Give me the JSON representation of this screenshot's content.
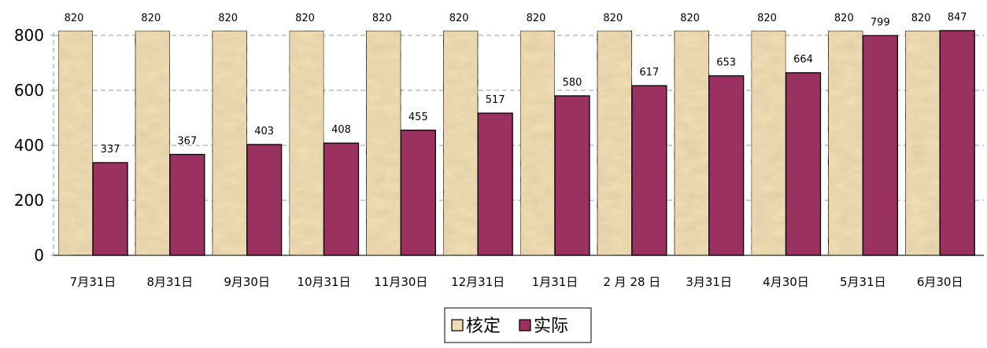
{
  "chart_data": {
    "type": "bar",
    "categories": [
      "7月31日",
      "8月31日",
      "9月30日",
      "10月31日",
      "11月30日",
      "12月31日",
      "1月31日",
      "2 月 28 日",
      "3月31日",
      "4月30日",
      "5月31日",
      "6月30日"
    ],
    "series": [
      {
        "name": "核定",
        "values": [
          820,
          820,
          820,
          820,
          820,
          820,
          820,
          820,
          820,
          820,
          820,
          820
        ],
        "color": "#efdcb2"
      },
      {
        "name": "实际",
        "values": [
          337,
          367,
          403,
          408,
          455,
          517,
          580,
          617,
          653,
          664,
          799,
          847
        ],
        "color": "#9a3161"
      }
    ],
    "ylim": [
      0,
      800
    ],
    "yticks": [
      0,
      200,
      400,
      600,
      800
    ],
    "grid": true,
    "legend": "bottom-center",
    "title": "",
    "xlabel": "",
    "ylabel": ""
  }
}
